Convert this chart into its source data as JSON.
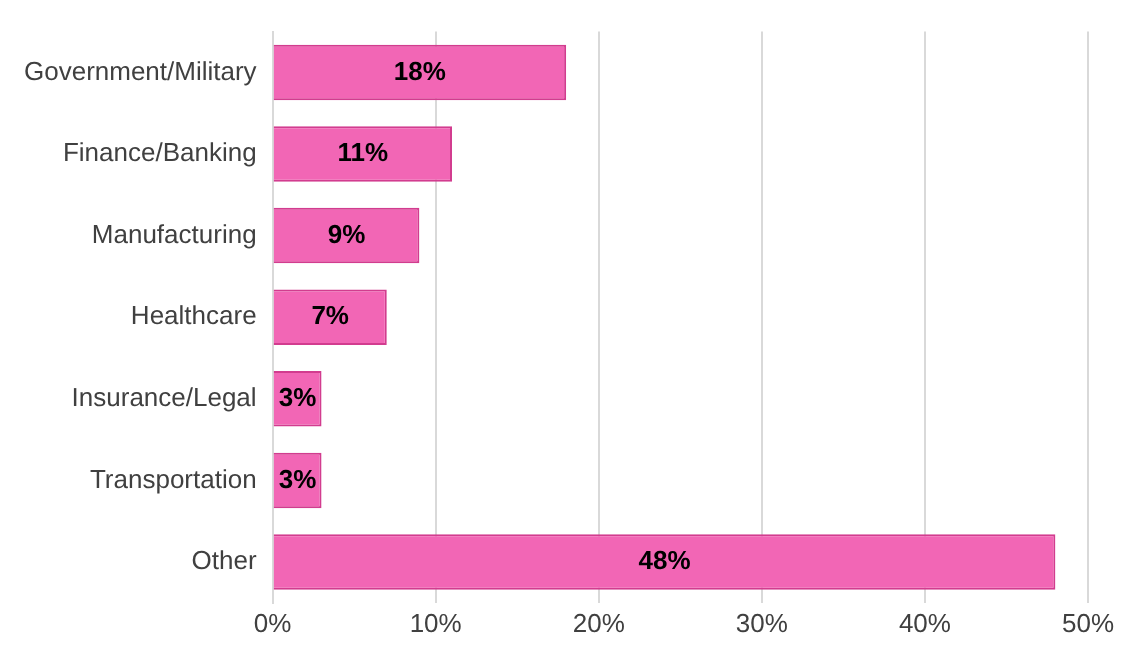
{
  "chart_data": {
    "type": "bar",
    "orientation": "horizontal",
    "categories": [
      "Government/Military",
      "Finance/Banking",
      "Manufacturing",
      "Healthcare",
      "Insurance/Legal",
      "Transportation",
      "Other"
    ],
    "values": [
      18,
      11,
      9,
      7,
      3,
      3,
      48
    ],
    "value_labels": [
      "18%",
      "11%",
      "9%",
      "7%",
      "3%",
      "3%",
      "48%"
    ],
    "color": "#f266b5",
    "xlim": [
      0,
      50
    ],
    "xticks": [
      {
        "value": 0,
        "label": "0%"
      },
      {
        "value": 10,
        "label": "10%"
      },
      {
        "value": 20,
        "label": "20%"
      },
      {
        "value": 30,
        "label": "30%"
      },
      {
        "value": 40,
        "label": "40%"
      },
      {
        "value": 50,
        "label": "50%"
      }
    ],
    "grid": "x"
  }
}
